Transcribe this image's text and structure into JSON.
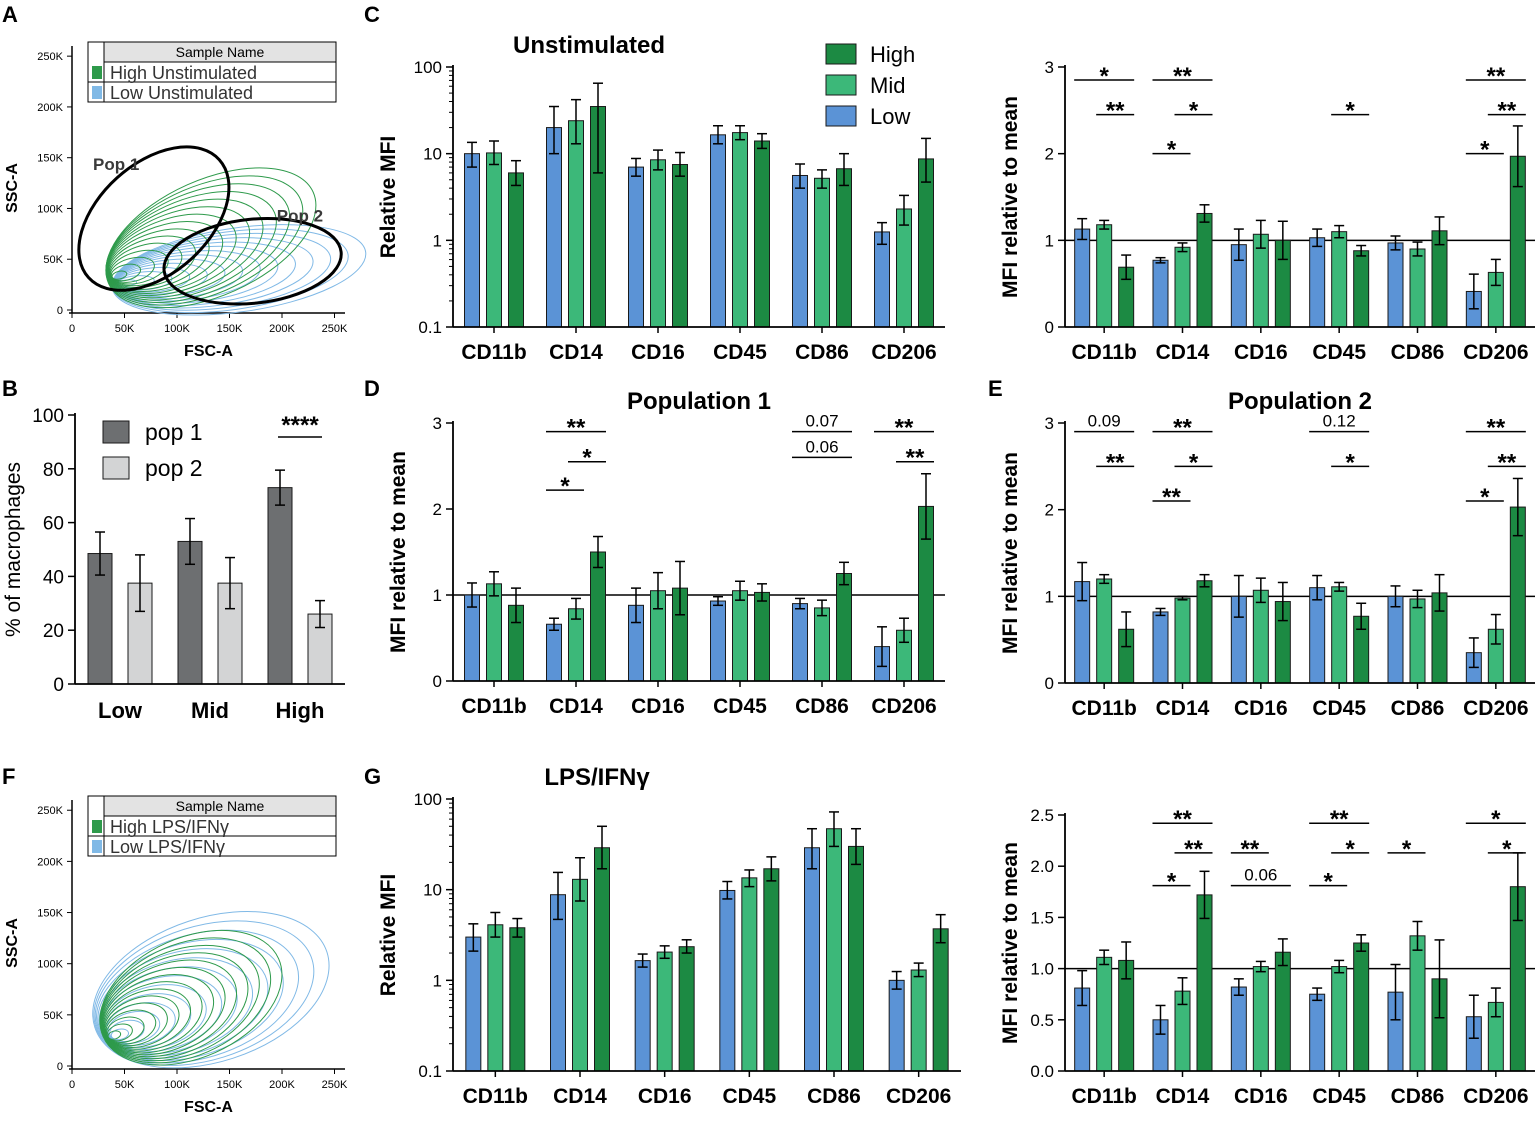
{
  "colors": {
    "low": "#5B93D6",
    "mid": "#3CB879",
    "high": "#1C8A43",
    "pop1": "#6D6F71",
    "pop2": "#D3D4D5",
    "contour_high": "#2E9A4B",
    "contour_low": "#80B9E6"
  },
  "chart_data": [
    {
      "id": "A",
      "type": "contour",
      "panel_label": "A",
      "legend_header": "Sample Name",
      "legend": [
        "High Unstimulated",
        "Low Unstimulated"
      ],
      "xlabel": "FSC-A",
      "ylabel": "SSC-A",
      "xticks": [
        "0",
        "50K",
        "100K",
        "150K",
        "200K",
        "250K"
      ],
      "yticks": [
        "0",
        "50K",
        "100K",
        "150K",
        "200K",
        "250K"
      ],
      "gates": [
        "Pop 1",
        "Pop 2"
      ]
    },
    {
      "id": "B",
      "type": "bar",
      "panel_label": "B",
      "categories": [
        "Low",
        "Mid",
        "High"
      ],
      "series": [
        {
          "name": "pop 1",
          "values": [
            48.5,
            53,
            73
          ],
          "err": [
            8,
            8.5,
            6.5
          ]
        },
        {
          "name": "pop 2",
          "values": [
            37.5,
            37.5,
            26
          ],
          "err": [
            10.5,
            9.5,
            5
          ]
        }
      ],
      "ylabel": "% of macrophages",
      "ylim": [
        0,
        100
      ],
      "yticks": [
        "0",
        "20",
        "40",
        "60",
        "80",
        "100"
      ],
      "sig": [
        {
          "label": "****",
          "cat": 2
        }
      ]
    },
    {
      "id": "C1",
      "type": "bar",
      "panel_label": "C",
      "title": "Unstimulated",
      "scale": "log",
      "categories": [
        "CD11b",
        "CD14",
        "CD16",
        "CD45",
        "CD86",
        "CD206"
      ],
      "series": [
        {
          "name": "Low",
          "values": [
            10,
            20,
            7,
            16.5,
            5.6,
            1.25
          ],
          "lo": [
            7,
            10,
            5.5,
            13,
            4,
            0.9
          ],
          "hi": [
            13.5,
            35,
            8.8,
            21,
            7.6,
            1.6
          ]
        },
        {
          "name": "Mid",
          "values": [
            10.2,
            24,
            8.5,
            17.5,
            5.2,
            2.3
          ],
          "lo": [
            7.5,
            13,
            6.5,
            14.5,
            4,
            1.5
          ],
          "hi": [
            14,
            42,
            11,
            21,
            6.5,
            3.3
          ]
        },
        {
          "name": "High",
          "values": [
            6,
            35,
            7.5,
            14,
            6.7,
            8.7
          ],
          "lo": [
            4.3,
            6,
            5.5,
            11.5,
            4.3,
            4.7
          ],
          "hi": [
            8.3,
            65,
            10.3,
            17,
            10,
            15
          ]
        }
      ],
      "ylabel": "Relative MFI",
      "ylim": [
        0.1,
        100
      ],
      "yticks": [
        "0.1",
        "1",
        "10",
        "100"
      ],
      "legend": [
        "High",
        "Mid",
        "Low"
      ]
    },
    {
      "id": "C2",
      "type": "bar",
      "scale": "linear",
      "categories": [
        "CD11b",
        "CD14",
        "CD16",
        "CD45",
        "CD86",
        "CD206"
      ],
      "series": [
        {
          "name": "Low",
          "values": [
            1.13,
            0.77,
            0.95,
            1.03,
            0.97,
            0.41
          ],
          "err": [
            0.12,
            0.03,
            0.18,
            0.1,
            0.08,
            0.2
          ]
        },
        {
          "name": "Mid",
          "values": [
            1.18,
            0.92,
            1.07,
            1.1,
            0.9,
            0.63
          ],
          "err": [
            0.05,
            0.05,
            0.16,
            0.07,
            0.08,
            0.15
          ]
        },
        {
          "name": "High",
          "values": [
            0.69,
            1.31,
            1.0,
            0.88,
            1.11,
            1.97
          ],
          "err": [
            0.14,
            0.1,
            0.22,
            0.06,
            0.16,
            0.35
          ]
        }
      ],
      "ylabel": "MFI relative to mean",
      "ylim": [
        0,
        3
      ],
      "yticks": [
        "0",
        "1",
        "2",
        "3"
      ],
      "refline": 1,
      "sig": [
        {
          "label": "*",
          "cat": 0,
          "from": 0,
          "to": 2,
          "level": 2.85
        },
        {
          "label": "**",
          "cat": 0,
          "from": 1,
          "to": 2,
          "level": 2.45
        },
        {
          "label": "**",
          "cat": 1,
          "from": 0,
          "to": 2,
          "level": 2.85
        },
        {
          "label": "*",
          "cat": 1,
          "from": 1,
          "to": 2,
          "level": 2.45
        },
        {
          "label": "*",
          "cat": 1,
          "from": 0,
          "to": 1,
          "level": 2.0
        },
        {
          "label": "*",
          "cat": 3,
          "from": 1,
          "to": 2,
          "level": 2.45
        },
        {
          "label": "**",
          "cat": 5,
          "from": 0,
          "to": 2,
          "level": 2.85
        },
        {
          "label": "**",
          "cat": 5,
          "from": 1,
          "to": 2,
          "level": 2.45
        },
        {
          "label": "*",
          "cat": 5,
          "from": 0,
          "to": 1,
          "level": 2.0
        }
      ]
    },
    {
      "id": "D",
      "type": "bar",
      "panel_label": "D",
      "title": "Population 1",
      "scale": "linear",
      "categories": [
        "CD11b",
        "CD14",
        "CD16",
        "CD45",
        "CD86",
        "CD206"
      ],
      "series": [
        {
          "name": "Low",
          "values": [
            1.0,
            0.66,
            0.88,
            0.93,
            0.9,
            0.4
          ],
          "err": [
            0.14,
            0.07,
            0.2,
            0.05,
            0.06,
            0.23
          ]
        },
        {
          "name": "Mid",
          "values": [
            1.13,
            0.84,
            1.05,
            1.05,
            0.85,
            0.59
          ],
          "err": [
            0.14,
            0.12,
            0.21,
            0.11,
            0.09,
            0.14
          ]
        },
        {
          "name": "High",
          "values": [
            0.88,
            1.5,
            1.08,
            1.03,
            1.25,
            2.03
          ],
          "err": [
            0.2,
            0.18,
            0.31,
            0.1,
            0.13,
            0.38
          ]
        }
      ],
      "ylabel": "MFI relative to mean",
      "ylim": [
        0,
        3
      ],
      "yticks": [
        "0",
        "1",
        "2",
        "3"
      ],
      "refline": 1,
      "sig": [
        {
          "label": "**",
          "cat": 1,
          "from": 0,
          "to": 2,
          "level": 2.9
        },
        {
          "label": "*",
          "cat": 1,
          "from": 1,
          "to": 2,
          "level": 2.55
        },
        {
          "label": "*",
          "cat": 1,
          "from": 0,
          "to": 1,
          "level": 2.22
        },
        {
          "label": "0.07",
          "cat": 4,
          "from": 0,
          "to": 2,
          "level": 2.9
        },
        {
          "label": "0.06",
          "cat": 4,
          "from": 0,
          "to": 2,
          "level": 2.6
        },
        {
          "label": "**",
          "cat": 5,
          "from": 0,
          "to": 2,
          "level": 2.9
        },
        {
          "label": "**",
          "cat": 5,
          "from": 1,
          "to": 2,
          "level": 2.55
        }
      ]
    },
    {
      "id": "E",
      "type": "bar",
      "panel_label": "E",
      "title": "Population 2",
      "scale": "linear",
      "categories": [
        "CD11b",
        "CD14",
        "CD16",
        "CD45",
        "CD86",
        "CD206"
      ],
      "series": [
        {
          "name": "Low",
          "values": [
            1.17,
            0.82,
            1.0,
            1.1,
            1.0,
            0.35
          ],
          "err": [
            0.22,
            0.04,
            0.24,
            0.14,
            0.12,
            0.17
          ]
        },
        {
          "name": "Mid",
          "values": [
            1.2,
            0.98,
            1.07,
            1.11,
            0.97,
            0.62
          ],
          "err": [
            0.05,
            0.02,
            0.14,
            0.05,
            0.1,
            0.17
          ]
        },
        {
          "name": "High",
          "values": [
            0.62,
            1.18,
            0.94,
            0.77,
            1.04,
            2.03
          ],
          "err": [
            0.2,
            0.07,
            0.22,
            0.15,
            0.21,
            0.33
          ]
        }
      ],
      "ylabel": "MFI relative to mean",
      "ylim": [
        0,
        3
      ],
      "yticks": [
        "0",
        "1",
        "2",
        "3"
      ],
      "refline": 1,
      "sig": [
        {
          "label": "0.09",
          "cat": 0,
          "from": 0,
          "to": 2,
          "level": 2.9
        },
        {
          "label": "**",
          "cat": 0,
          "from": 1,
          "to": 2,
          "level": 2.5
        },
        {
          "label": "**",
          "cat": 1,
          "from": 0,
          "to": 2,
          "level": 2.9
        },
        {
          "label": "*",
          "cat": 1,
          "from": 1,
          "to": 2,
          "level": 2.5
        },
        {
          "label": "**",
          "cat": 1,
          "from": 0,
          "to": 1,
          "level": 2.1
        },
        {
          "label": "0.12",
          "cat": 3,
          "from": 0,
          "to": 2,
          "level": 2.9
        },
        {
          "label": "*",
          "cat": 3,
          "from": 1,
          "to": 2,
          "level": 2.5
        },
        {
          "label": "**",
          "cat": 5,
          "from": 0,
          "to": 2,
          "level": 2.9
        },
        {
          "label": "**",
          "cat": 5,
          "from": 1,
          "to": 2,
          "level": 2.5
        },
        {
          "label": "*",
          "cat": 5,
          "from": 0,
          "to": 1,
          "level": 2.1
        }
      ]
    },
    {
      "id": "F",
      "type": "contour",
      "panel_label": "F",
      "legend_header": "Sample Name",
      "legend": [
        "High LPS/IFNγ",
        "Low LPS/IFNγ"
      ],
      "xlabel": "FSC-A",
      "ylabel": "SSC-A",
      "xticks": [
        "0",
        "50K",
        "100K",
        "150K",
        "200K",
        "250K"
      ],
      "yticks": [
        "0",
        "50K",
        "100K",
        "150K",
        "200K",
        "250K"
      ]
    },
    {
      "id": "G1",
      "type": "bar",
      "panel_label": "G",
      "title": "LPS/IFNγ",
      "scale": "log",
      "categories": [
        "CD11b",
        "CD14",
        "CD16",
        "CD45",
        "CD86",
        "CD206"
      ],
      "series": [
        {
          "name": "Low",
          "values": [
            3,
            8.8,
            1.65,
            9.8,
            29,
            1.0
          ],
          "lo": [
            2.1,
            4.7,
            1.4,
            7.9,
            17,
            0.8
          ],
          "hi": [
            4.2,
            15.5,
            1.95,
            12.3,
            47,
            1.25
          ]
        },
        {
          "name": "Mid",
          "values": [
            4.1,
            13,
            2.05,
            13.5,
            47,
            1.3
          ],
          "lo": [
            3,
            7.5,
            1.75,
            10.8,
            30,
            1.1
          ],
          "hi": [
            5.6,
            22.5,
            2.4,
            16.5,
            72,
            1.55
          ]
        },
        {
          "name": "High",
          "values": [
            3.8,
            29,
            2.35,
            17,
            30,
            3.7
          ],
          "lo": [
            3,
            17,
            2,
            12.5,
            19,
            2.6
          ],
          "hi": [
            4.8,
            50,
            2.8,
            23,
            47,
            5.3
          ]
        }
      ],
      "ylabel": "Relative MFI",
      "ylim": [
        0.1,
        100
      ],
      "yticks": [
        "0.1",
        "1",
        "10",
        "100"
      ]
    },
    {
      "id": "G2",
      "type": "bar",
      "scale": "linear",
      "categories": [
        "CD11b",
        "CD14",
        "CD16",
        "CD45",
        "CD86",
        "CD206"
      ],
      "series": [
        {
          "name": "Low",
          "values": [
            0.81,
            0.5,
            0.82,
            0.75,
            0.77,
            0.53
          ],
          "err": [
            0.17,
            0.14,
            0.08,
            0.06,
            0.27,
            0.21
          ]
        },
        {
          "name": "Mid",
          "values": [
            1.11,
            0.78,
            1.02,
            1.02,
            1.32,
            0.67
          ],
          "err": [
            0.07,
            0.13,
            0.05,
            0.06,
            0.14,
            0.14
          ]
        },
        {
          "name": "High",
          "values": [
            1.08,
            1.72,
            1.16,
            1.25,
            0.9,
            1.8
          ],
          "err": [
            0.18,
            0.23,
            0.13,
            0.08,
            0.38,
            0.33
          ]
        }
      ],
      "ylabel": "MFI relative to mean",
      "ylim": [
        0,
        2.5
      ],
      "yticks": [
        "0.0",
        "0.5",
        "1.0",
        "1.5",
        "2.0",
        "2.5"
      ],
      "refline": 1,
      "sig": [
        {
          "label": "**",
          "cat": 1,
          "from": 0,
          "to": 2,
          "level": 2.42
        },
        {
          "label": "**",
          "cat": 1,
          "from": 1,
          "to": 2,
          "level": 2.13
        },
        {
          "label": "*",
          "cat": 1,
          "from": 0,
          "to": 1,
          "level": 1.81
        },
        {
          "label": "**",
          "cat": 2,
          "from": 0,
          "to": 1,
          "level": 2.13
        },
        {
          "label": "0.06",
          "cat": 2,
          "from": 0,
          "to": 2,
          "level": 1.81
        },
        {
          "label": "**",
          "cat": 3,
          "from": 0,
          "to": 2,
          "level": 2.42
        },
        {
          "label": "*",
          "cat": 3,
          "from": 1,
          "to": 2,
          "level": 2.13
        },
        {
          "label": "*",
          "cat": 3,
          "from": 0,
          "to": 1,
          "level": 1.81
        },
        {
          "label": "*",
          "cat": 4,
          "from": 0,
          "to": 1,
          "level": 2.13
        },
        {
          "label": "*",
          "cat": 5,
          "from": 0,
          "to": 2,
          "level": 2.42
        },
        {
          "label": "*",
          "cat": 5,
          "from": 1,
          "to": 2,
          "level": 2.13
        }
      ]
    }
  ]
}
